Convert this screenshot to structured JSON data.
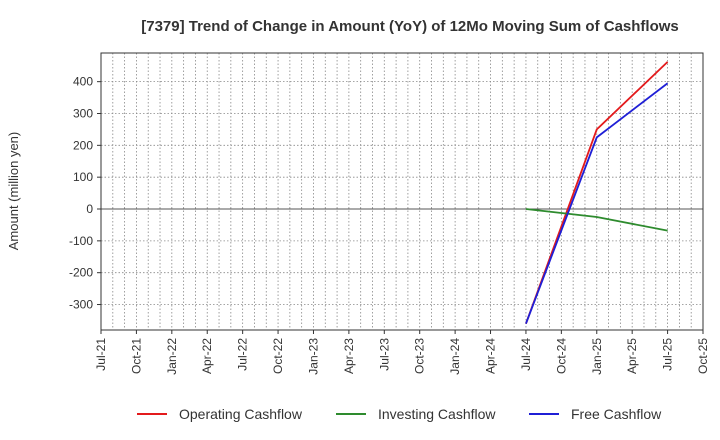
{
  "chart_data": {
    "type": "line",
    "title": "[7379]  Trend of Change in Amount (YoY) of 12Mo Moving Sum of Cashflows",
    "xlabel": "",
    "ylabel": "Amount (million yen)",
    "x_tick_labels": [
      "Jul-21",
      "Oct-21",
      "Jan-22",
      "Apr-22",
      "Jul-22",
      "Oct-22",
      "Jan-23",
      "Apr-23",
      "Jul-23",
      "Oct-23",
      "Jan-24",
      "Apr-24",
      "Jul-24",
      "Oct-24",
      "Jan-25",
      "Apr-25",
      "Jul-25",
      "Oct-25"
    ],
    "y_ticks": [
      -300,
      -200,
      -100,
      0,
      100,
      200,
      300,
      400
    ],
    "ylim": [
      -380,
      490
    ],
    "grid": true,
    "legend_position": "bottom",
    "x": [
      "Jul-24",
      "Jan-25",
      "Jul-25"
    ],
    "series": [
      {
        "name": "Operating Cashflow",
        "color": "#e31a1c",
        "values": [
          -360,
          250,
          462
        ]
      },
      {
        "name": "Investing Cashflow",
        "color": "#2e8b2e",
        "values": [
          0,
          -25,
          -68
        ]
      },
      {
        "name": "Free Cashflow",
        "color": "#1f1fd6",
        "values": [
          -360,
          225,
          395
        ]
      }
    ]
  }
}
